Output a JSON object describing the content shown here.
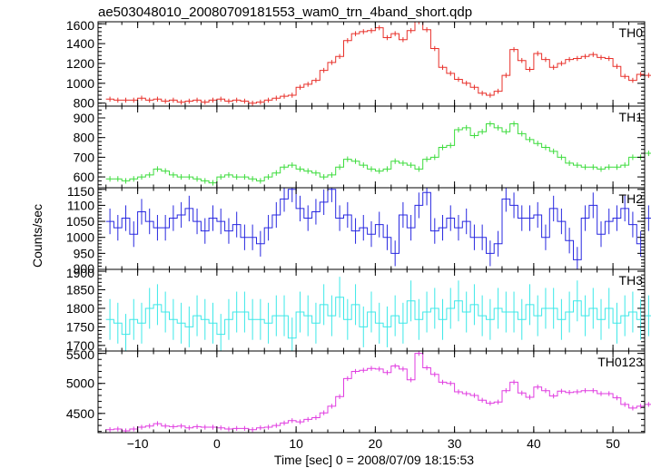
{
  "title": "ae503048010_20080709181553_wam0_trn_4band_short.qdp",
  "xlabel": "Time [sec] 0 = 2008/07/09 18:15:53",
  "ylabel": "Counts/sec",
  "chart_data": {
    "type": "line",
    "style": "step-with-errorbars",
    "xlim": [
      -15,
      54
    ],
    "x_ticks": [
      -10,
      0,
      10,
      20,
      30,
      40,
      50
    ],
    "x_start": -13.5,
    "x_step": 1,
    "panels": [
      {
        "name": "TH0",
        "color": "#e8302a",
        "ylim": [
          770,
          1620
        ],
        "y_ticks": [
          800,
          1000,
          1200,
          1400,
          1600
        ],
        "err": 25,
        "values": [
          840,
          830,
          830,
          830,
          850,
          830,
          840,
          820,
          830,
          810,
          820,
          830,
          810,
          830,
          840,
          820,
          830,
          820,
          800,
          810,
          830,
          850,
          870,
          880,
          960,
          990,
          1030,
          1130,
          1210,
          1270,
          1430,
          1500,
          1520,
          1530,
          1560,
          1460,
          1500,
          1440,
          1530,
          1620,
          1540,
          1350,
          1160,
          1100,
          1040,
          1000,
          960,
          900,
          880,
          920,
          1080,
          1340,
          1230,
          1140,
          1300,
          1240,
          1160,
          1200,
          1240,
          1250,
          1270,
          1290,
          1260,
          1250,
          1170,
          1070,
          1030,
          1090,
          1080,
          1110,
          1060,
          1050,
          950,
          990,
          1040,
          1050,
          1090,
          1060,
          1080,
          1100,
          1060,
          1030,
          1070,
          1030,
          1100,
          1110,
          1140,
          1100,
          1020,
          1000,
          880,
          890,
          910,
          880,
          830,
          880,
          860,
          920,
          900,
          840,
          890,
          860,
          900,
          870,
          840,
          870,
          860,
          870,
          870,
          830,
          860,
          840,
          840,
          860,
          880,
          870,
          830,
          840,
          870,
          890,
          860,
          830,
          860,
          850,
          880,
          850,
          830,
          850,
          870,
          860,
          820,
          840,
          850,
          870,
          840,
          860
        ]
      },
      {
        "name": "TH1",
        "color": "#3cdc3c",
        "ylim": [
          545,
          960
        ],
        "y_ticks": [
          600,
          700,
          800,
          900
        ],
        "err": 14,
        "values": [
          590,
          590,
          580,
          590,
          600,
          610,
          640,
          630,
          610,
          600,
          600,
          590,
          580,
          570,
          600,
          610,
          600,
          600,
          590,
          580,
          600,
          620,
          650,
          660,
          640,
          630,
          620,
          600,
          610,
          650,
          690,
          680,
          660,
          640,
          630,
          640,
          680,
          670,
          660,
          640,
          690,
          700,
          750,
          760,
          840,
          850,
          810,
          830,
          870,
          850,
          830,
          870,
          820,
          790,
          770,
          750,
          730,
          700,
          670,
          660,
          650,
          650,
          640,
          650,
          650,
          660,
          700,
          700,
          720,
          800,
          840,
          720,
          720,
          760,
          760,
          720,
          680,
          650,
          650,
          680,
          700,
          730,
          730,
          720,
          720,
          710,
          730,
          720,
          700,
          680,
          670,
          640,
          650,
          630,
          640,
          620,
          630,
          620,
          630,
          630,
          610,
          650,
          620,
          640,
          600,
          610,
          610,
          640,
          620,
          600,
          620,
          600,
          630,
          620,
          600,
          590,
          600,
          630,
          610,
          600,
          610,
          610,
          600,
          630,
          650,
          640,
          610,
          600,
          600,
          610,
          620,
          620,
          630,
          640,
          620,
          610,
          600
        ]
      },
      {
        "name": "TH2",
        "color": "#2828e0",
        "ylim": [
          900,
          1155
        ],
        "y_ticks": [
          900,
          950,
          1000,
          1050,
          1100,
          1150
        ],
        "err": 40,
        "values": [
          1050,
          1030,
          1060,
          1010,
          1080,
          1050,
          1030,
          1030,
          1060,
          1070,
          1090,
          1050,
          1020,
          1060,
          1050,
          1020,
          1040,
          1000,
          1000,
          980,
          1030,
          1070,
          1120,
          1150,
          1090,
          1060,
          1080,
          1110,
          1150,
          1060,
          1070,
          1020,
          1030,
          1010,
          1040,
          1000,
          950,
          1070,
          1030,
          1100,
          1140,
          1020,
          1030,
          1060,
          1030,
          1050,
          1000,
          1000,
          950,
          980,
          1120,
          1100,
          1060,
          1060,
          1070,
          1000,
          1090,
          1050,
          990,
          930,
          1060,
          1100,
          1010,
          1050,
          1060,
          1090,
          1040,
          980,
          1060,
          1030,
          1070,
          1140,
          1090,
          1040,
          1080,
          1060,
          1020,
          980,
          1040,
          1060,
          1000,
          1010,
          1020,
          1000,
          1080,
          1070,
          1000,
          1030,
          1000,
          980,
          1070,
          1060,
          1060,
          1050,
          1040,
          1020,
          1050,
          1060,
          1040,
          1030,
          1070,
          1050,
          1090,
          1030,
          1020,
          1000,
          1050,
          1040,
          1060,
          1080,
          1080,
          1080,
          1030,
          1030,
          1050,
          1080,
          1060,
          1040,
          1050,
          1040,
          1060,
          1000,
          1010,
          1030,
          1060,
          1040,
          1050,
          1080,
          1060,
          1050,
          1000,
          1030,
          1040,
          1030,
          1060,
          1070,
          1040
        ]
      },
      {
        "name": "TH3",
        "color": "#3ce8e8",
        "ylim": [
          1685,
          1905
        ],
        "y_ticks": [
          1700,
          1750,
          1800,
          1850,
          1900
        ],
        "err": 55,
        "values": [
          1770,
          1760,
          1730,
          1770,
          1760,
          1800,
          1810,
          1790,
          1770,
          1760,
          1750,
          1780,
          1770,
          1760,
          1730,
          1770,
          1790,
          1790,
          1770,
          1770,
          1760,
          1780,
          1780,
          1720,
          1790,
          1780,
          1760,
          1810,
          1780,
          1830,
          1770,
          1810,
          1750,
          1790,
          1760,
          1750,
          1780,
          1760,
          1820,
          1770,
          1790,
          1800,
          1770,
          1800,
          1820,
          1790,
          1810,
          1780,
          1770,
          1800,
          1790,
          1790,
          1770,
          1810,
          1780,
          1800,
          1800,
          1770,
          1790,
          1820,
          1780,
          1800,
          1770,
          1800,
          1760,
          1780,
          1790,
          1770,
          1780,
          1780,
          1780,
          1770,
          1790,
          1770,
          1740,
          1760,
          1810,
          1770,
          1790,
          1760,
          1800,
          1750,
          1790,
          1760,
          1780,
          1790,
          1800,
          1780,
          1840,
          1770,
          1780,
          1820,
          1790,
          1760,
          1840,
          1740,
          1830,
          1760,
          1780,
          1800,
          1810,
          1760,
          1790,
          1780,
          1820,
          1780,
          1800,
          1780,
          1760,
          1770,
          1790,
          1770,
          1800,
          1770,
          1780,
          1760,
          1800,
          1770,
          1790,
          1780,
          1770,
          1800,
          1790,
          1760,
          1780,
          1800,
          1770,
          1790,
          1760,
          1770,
          1780,
          1760,
          1780,
          1790,
          1770,
          1800,
          1760
        ]
      },
      {
        "name": "TH0123",
        "color": "#e03ce0",
        "ylim": [
          4180,
          5540
        ],
        "y_ticks": [
          4500,
          5000,
          5500
        ],
        "err": 40,
        "values": [
          4230,
          4240,
          4210,
          4240,
          4270,
          4290,
          4330,
          4290,
          4280,
          4290,
          4260,
          4280,
          4270,
          4270,
          4260,
          4240,
          4250,
          4250,
          4230,
          4260,
          4270,
          4300,
          4340,
          4380,
          4360,
          4400,
          4430,
          4510,
          4620,
          4780,
          5080,
          5200,
          5220,
          5250,
          5240,
          5180,
          5290,
          5240,
          5060,
          5500,
          5260,
          5150,
          5020,
          5000,
          4860,
          4830,
          4800,
          4720,
          4670,
          4690,
          4880,
          5020,
          4840,
          4770,
          4940,
          4880,
          4790,
          4870,
          4850,
          4860,
          4880,
          4880,
          4830,
          4830,
          4760,
          4650,
          4590,
          4620,
          4650,
          4690,
          4620,
          4640,
          4500,
          4560,
          4590,
          4590,
          4620,
          4630,
          4610,
          4640,
          4600,
          4580,
          4630,
          4610,
          4650,
          4700,
          4700,
          4600,
          4480,
          4440,
          4360,
          4360,
          4330,
          4320,
          4260,
          4290,
          4270,
          4350,
          4330,
          4260,
          4300,
          4290,
          4320,
          4310,
          4280,
          4290,
          4280,
          4310,
          4320,
          4260,
          4310,
          4270,
          4290,
          4300,
          4320,
          4300,
          4270,
          4270,
          4290,
          4310,
          4280,
          4260,
          4300,
          4290,
          4320,
          4290,
          4270,
          4280,
          4300,
          4290,
          4260,
          4280,
          4300,
          4320,
          4280,
          4290,
          4300
        ]
      }
    ]
  }
}
